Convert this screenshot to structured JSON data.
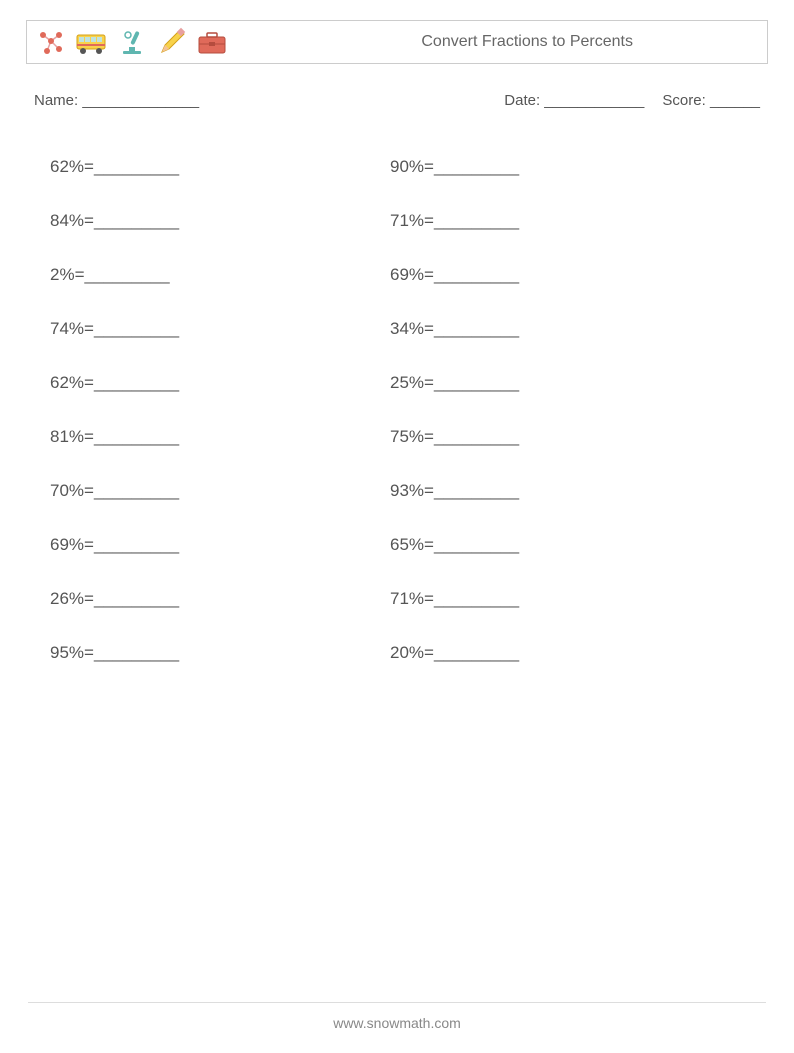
{
  "header": {
    "title": "Convert Fractions to Percents"
  },
  "meta": {
    "name_label": "Name:",
    "name_blank": "______________",
    "date_label": "Date:",
    "date_blank": "____________",
    "score_label": "Score:",
    "score_blank": "______"
  },
  "blank": "_________",
  "equals": " = ",
  "columns": {
    "left": [
      "62%",
      "84%",
      "2%",
      "74%",
      "62%",
      "81%",
      "70%",
      "69%",
      "26%",
      "95%"
    ],
    "right": [
      "90%",
      "71%",
      "69%",
      "34%",
      "25%",
      "75%",
      "93%",
      "65%",
      "71%",
      "20%"
    ]
  },
  "footer": {
    "url": "www.snowmath.com"
  },
  "colors": {
    "text": "#555555",
    "border": "#cccccc",
    "footer": "#888888",
    "orange": "#f5a623",
    "yellow": "#f8d24b",
    "teal": "#5fb6b0",
    "red": "#e06a5a",
    "pink": "#e8a0a0"
  }
}
